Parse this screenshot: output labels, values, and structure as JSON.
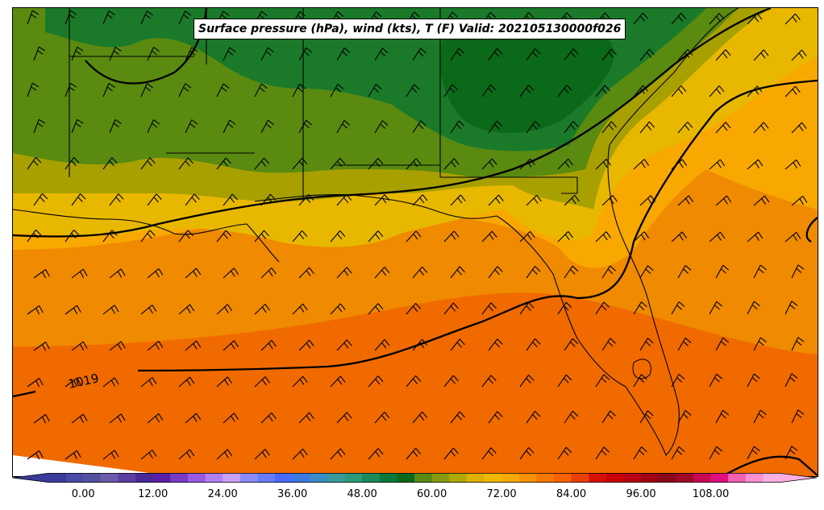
{
  "title": "Surface pressure (hPa), wind (kts), T (F) Valid: 202105130000f026",
  "isobar_labels": [
    "1019"
  ],
  "colorbar": {
    "tick_labels": [
      "0.00",
      "12.00",
      "24.00",
      "36.00",
      "48.00",
      "60.00",
      "72.00",
      "84.00",
      "96.00",
      "108.00"
    ],
    "min": -6,
    "max": 120,
    "step": 3,
    "colors": [
      "#3a3a9a",
      "#4a4aa6",
      "#55509e",
      "#6a5aa8",
      "#5a3fa0",
      "#4a2a98",
      "#5a1fa8",
      "#7a3ac8",
      "#9a5ae0",
      "#b080f0",
      "#c8a0f8",
      "#8a8aff",
      "#6a7aff",
      "#4a6aff",
      "#3a7ae0",
      "#3a8ac8",
      "#3a9a9a",
      "#2a9a7a",
      "#1a8a5a",
      "#0a7a3a",
      "#0a6a1a",
      "#5a8a10",
      "#8a9a10",
      "#b0a800",
      "#e0b000",
      "#f0b800",
      "#f8a800",
      "#f89000",
      "#f87800",
      "#f86000",
      "#e84000",
      "#d81000",
      "#c80000",
      "#b80010",
      "#a00010",
      "#880818",
      "#a00828",
      "#c80850",
      "#e01080",
      "#f060b0",
      "#ff90d0",
      "#ffb0e0"
    ]
  }
}
